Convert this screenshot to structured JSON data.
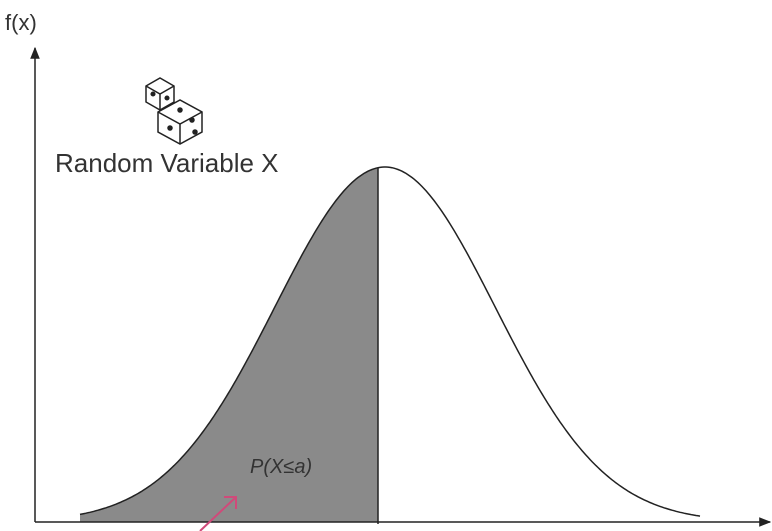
{
  "y_axis_label": "f(x)",
  "variable_label": "Random Variable X",
  "area_label": "P(X≤a)"
}
